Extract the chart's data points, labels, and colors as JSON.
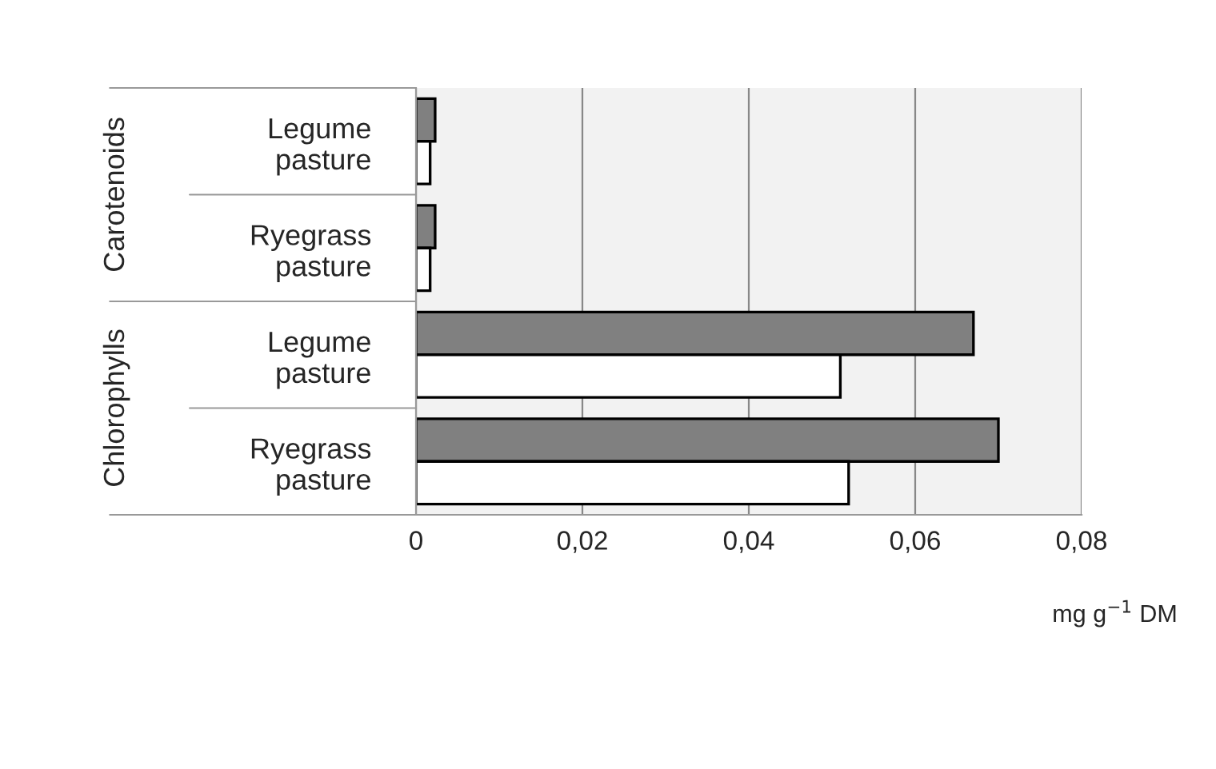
{
  "chart_data": {
    "type": "bar",
    "orientation": "horizontal",
    "categories": [
      "Legume pasture",
      "Ryegrass pasture",
      "Legume pasture",
      "Ryegrass pasture"
    ],
    "series": [
      {
        "color": "#808080",
        "values": [
          0.0023,
          0.0023,
          0.067,
          0.07
        ]
      },
      {
        "color": "#ffffff",
        "values": [
          0.0017,
          0.0017,
          0.051,
          0.052
        ]
      }
    ],
    "xlabel": "mg g$^{−1}$ DM",
    "annotations": [
      "Carotenoids",
      "Chlorophylls"
    ],
    "xlim": [
      0,
      0.08
    ],
    "xticks": [
      0,
      {
        "value": 0.02,
        "label": "0,02"
      },
      {
        "value": 0.04,
        "label": "0,04"
      },
      {
        "value": 0.06,
        "label": "0,06"
      },
      {
        "value": 0.08,
        "label": "0,08"
      }
    ],
    "grid": "x",
    "legend": false
  }
}
